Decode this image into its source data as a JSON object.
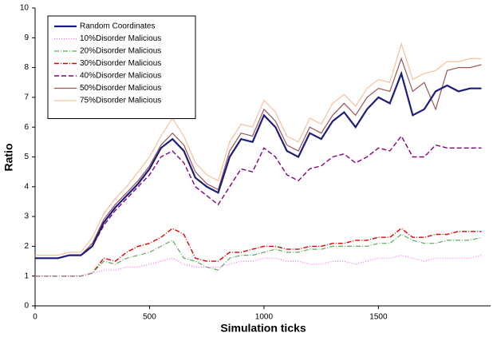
{
  "chart_data": {
    "type": "line",
    "x_label": "Simulation ticks",
    "y_label": "Ratio",
    "x": [
      0,
      50,
      100,
      150,
      200,
      250,
      300,
      350,
      400,
      450,
      500,
      550,
      600,
      650,
      700,
      750,
      800,
      850,
      900,
      950,
      1000,
      1050,
      1100,
      1150,
      1200,
      1250,
      1300,
      1350,
      1400,
      1450,
      1500,
      1550,
      1600,
      1650,
      1700,
      1750,
      1800,
      1850,
      1900,
      1950
    ],
    "xlim": [
      0,
      1990
    ],
    "xticks": [
      0,
      500,
      1000,
      1500
    ],
    "ylim": [
      0,
      10
    ],
    "yticks": [
      0,
      1,
      2,
      3,
      4,
      5,
      6,
      7,
      8,
      9,
      10
    ],
    "legend": "top-left",
    "series": [
      {
        "name": "Random Coordinates",
        "color": "#1c1c7a",
        "width": 2.2,
        "dash": "none",
        "values": [
          1.6,
          1.6,
          1.6,
          1.7,
          1.7,
          2.0,
          2.8,
          3.3,
          3.7,
          4.1,
          4.6,
          5.3,
          5.6,
          5.2,
          4.3,
          4.0,
          3.8,
          5.0,
          5.6,
          5.5,
          6.4,
          6.0,
          5.2,
          5.0,
          5.8,
          5.6,
          6.2,
          6.5,
          6.0,
          6.6,
          7.0,
          6.8,
          7.8,
          6.4,
          6.6,
          7.2,
          7.4,
          7.2,
          7.3,
          7.3
        ]
      },
      {
        "name": "10%Disorder Malicious",
        "color": "#ff66ff",
        "width": 1.2,
        "dash": "1,2",
        "values": [
          1.0,
          1.0,
          1.0,
          1.0,
          1.0,
          1.1,
          1.2,
          1.2,
          1.3,
          1.3,
          1.4,
          1.5,
          1.6,
          1.4,
          1.3,
          1.3,
          1.3,
          1.4,
          1.5,
          1.5,
          1.6,
          1.6,
          1.5,
          1.5,
          1.4,
          1.4,
          1.5,
          1.5,
          1.4,
          1.5,
          1.6,
          1.6,
          1.7,
          1.6,
          1.5,
          1.6,
          1.6,
          1.6,
          1.6,
          1.7
        ]
      },
      {
        "name": "20%Disorder Malicious",
        "color": "#5fa85f",
        "width": 1.2,
        "dash": "6,2,1,2",
        "values": [
          1.0,
          1.0,
          1.0,
          1.0,
          1.0,
          1.1,
          1.5,
          1.4,
          1.6,
          1.7,
          1.8,
          2.0,
          2.2,
          1.6,
          1.5,
          1.3,
          1.2,
          1.6,
          1.7,
          1.7,
          1.8,
          1.9,
          1.8,
          1.8,
          1.9,
          1.9,
          2.0,
          2.0,
          2.0,
          2.0,
          2.1,
          2.1,
          2.4,
          2.2,
          2.1,
          2.1,
          2.2,
          2.2,
          2.2,
          2.3
        ]
      },
      {
        "name": "30%Disorder Malicious",
        "color": "#e00000",
        "width": 1.4,
        "dash": "6,2,1,2",
        "values": [
          1.0,
          1.0,
          1.0,
          1.0,
          1.0,
          1.1,
          1.6,
          1.5,
          1.8,
          2.0,
          2.1,
          2.3,
          2.6,
          2.4,
          1.6,
          1.5,
          1.5,
          1.8,
          1.8,
          1.9,
          2.0,
          2.0,
          1.9,
          1.9,
          2.0,
          2.0,
          2.1,
          2.1,
          2.2,
          2.2,
          2.3,
          2.3,
          2.6,
          2.3,
          2.3,
          2.4,
          2.4,
          2.5,
          2.5,
          2.5
        ]
      },
      {
        "name": "40%Disorder Malicious",
        "color": "#800080",
        "width": 1.4,
        "dash": "6,3",
        "values": [
          1.6,
          1.6,
          1.6,
          1.7,
          1.7,
          2.0,
          2.7,
          3.2,
          3.6,
          4.0,
          4.4,
          5.0,
          5.2,
          4.8,
          4.0,
          3.7,
          3.4,
          4.0,
          4.6,
          4.5,
          5.3,
          5.0,
          4.4,
          4.2,
          4.6,
          4.7,
          5.0,
          5.1,
          4.8,
          5.0,
          5.3,
          5.2,
          5.7,
          5.0,
          5.0,
          5.4,
          5.3,
          5.3,
          5.3,
          5.3
        ]
      },
      {
        "name": "50%Disorder Malicious",
        "color": "#9a5656",
        "width": 1.2,
        "dash": "none",
        "values": [
          1.6,
          1.6,
          1.6,
          1.7,
          1.7,
          2.1,
          2.9,
          3.4,
          3.8,
          4.2,
          4.7,
          5.4,
          5.8,
          5.4,
          4.5,
          4.1,
          3.9,
          5.2,
          5.8,
          5.7,
          6.6,
          6.2,
          5.4,
          5.2,
          6.0,
          5.8,
          6.4,
          6.8,
          6.4,
          7.0,
          7.3,
          7.2,
          8.3,
          7.2,
          7.5,
          6.6,
          7.9,
          8.0,
          8.0,
          8.1
        ]
      },
      {
        "name": "75%Disorder Malicious",
        "color": "#f5c29c",
        "width": 1.2,
        "dash": "none",
        "values": [
          1.7,
          1.7,
          1.7,
          1.8,
          1.8,
          2.3,
          3.1,
          3.6,
          4.0,
          4.5,
          5.0,
          5.7,
          6.3,
          5.7,
          4.8,
          4.4,
          4.2,
          5.5,
          6.1,
          6.0,
          6.9,
          6.5,
          5.7,
          5.5,
          6.3,
          6.1,
          6.8,
          7.1,
          6.7,
          7.3,
          7.6,
          7.5,
          8.8,
          7.6,
          7.8,
          7.9,
          8.2,
          8.2,
          8.3,
          8.3
        ]
      }
    ]
  }
}
